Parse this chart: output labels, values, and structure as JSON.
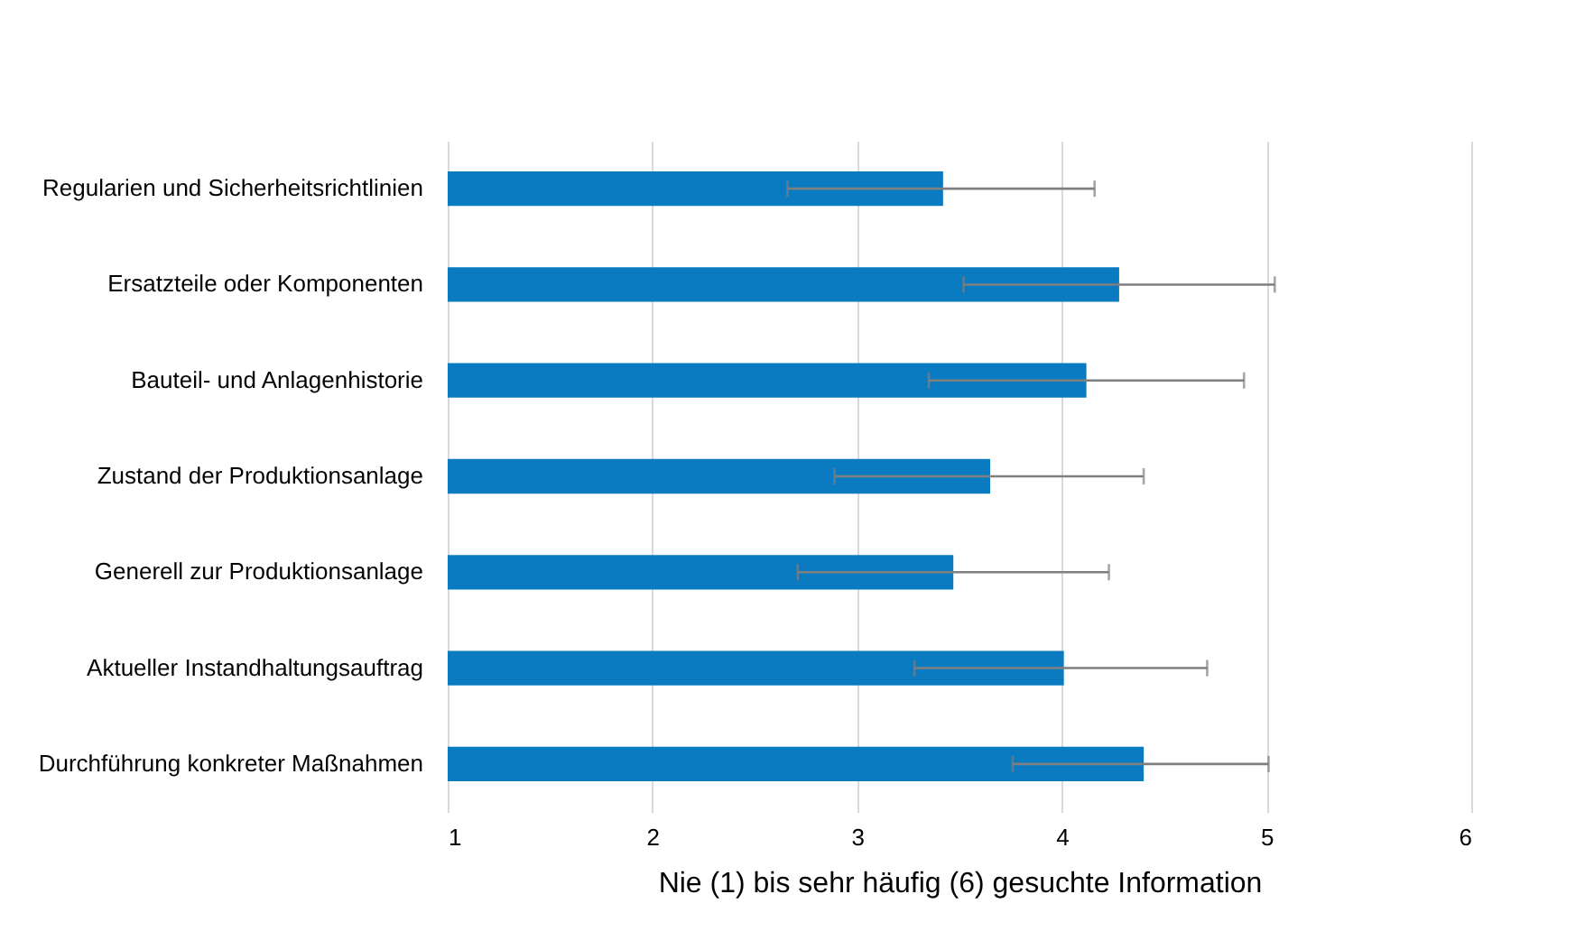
{
  "chart_data": {
    "type": "bar",
    "orientation": "horizontal",
    "xlabel": "Nie (1) bis sehr häufig (6) gesuchte Information",
    "categories": [
      "Regularien und Sicherheitsrichtlinien",
      "Ersatzteile oder Komponenten",
      "Bauteil- und Anlagenhistorie",
      "Zustand der Produktionsanlage",
      "Generell zur Produktionsanlage",
      "Aktueller Instandhaltungsauftrag",
      "Durchführung konkreter Maßnahmen"
    ],
    "values": [
      3.42,
      4.28,
      4.12,
      3.65,
      3.47,
      4.01,
      4.4
    ],
    "errors": [
      [
        2.66,
        4.16
      ],
      [
        3.52,
        5.04
      ],
      [
        3.35,
        4.89
      ],
      [
        2.89,
        4.4
      ],
      [
        2.71,
        4.23
      ],
      [
        3.28,
        4.71
      ],
      [
        3.76,
        5.01
      ]
    ],
    "color": "#0a7bc1",
    "xlim": [
      1,
      6
    ],
    "xticks": [
      1,
      2,
      3,
      4,
      5,
      6
    ],
    "grid": "x"
  }
}
